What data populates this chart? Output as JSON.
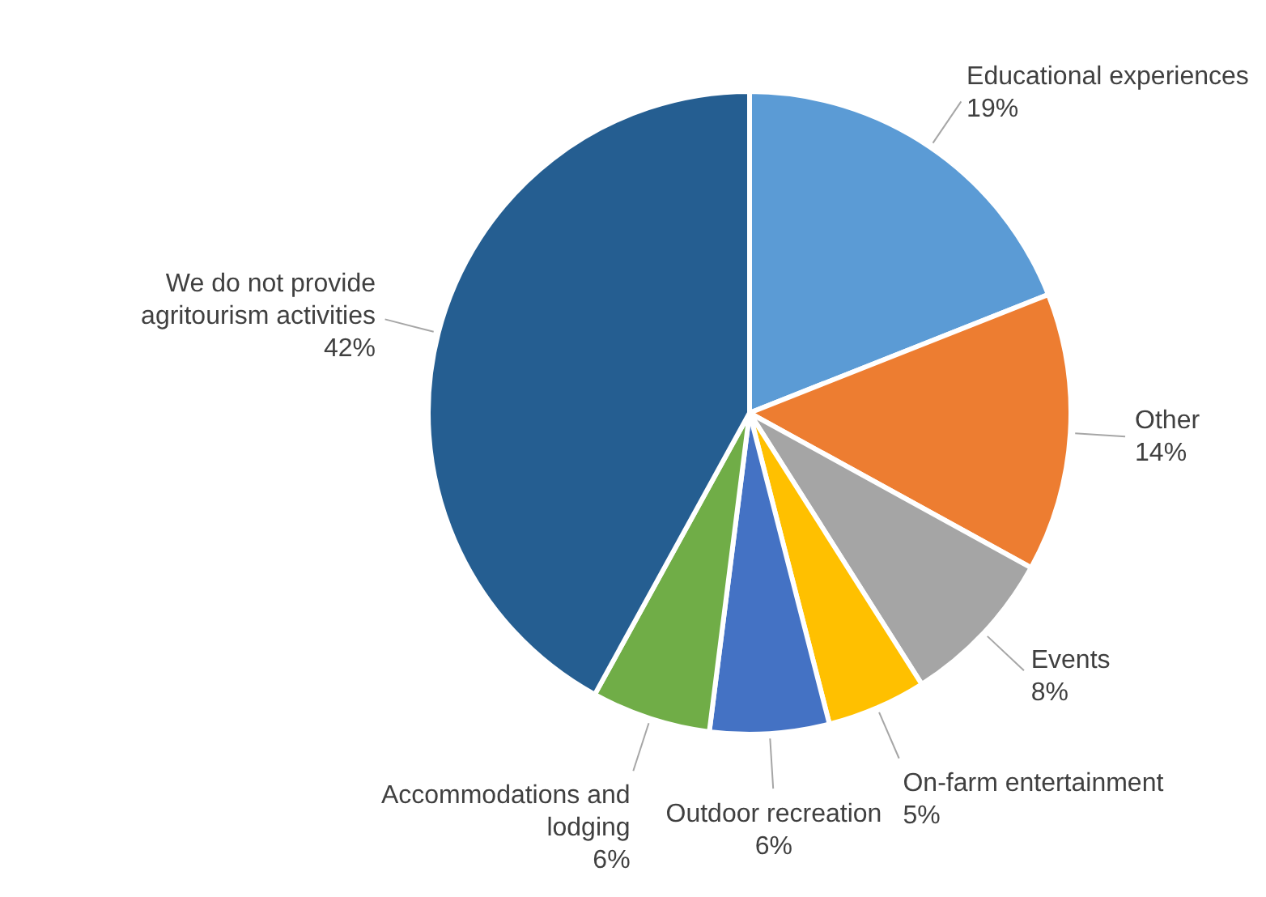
{
  "chart_data": {
    "type": "pie",
    "categories": [
      "Educational experiences",
      "Other",
      "Events",
      "On-farm entertainment",
      "Outdoor recreation",
      "Accommodations and lodging",
      "We do not provide agritourism activities"
    ],
    "values": [
      19,
      14,
      8,
      5,
      6,
      6,
      42
    ],
    "value_labels": [
      "19%",
      "14%",
      "8%",
      "5%",
      "6%",
      "6%",
      "42%"
    ],
    "colors": [
      "#5b9bd5",
      "#ed7d31",
      "#a5a5a5",
      "#ffc000",
      "#4472c4",
      "#70ad47",
      "#255e91"
    ],
    "legend": false
  }
}
